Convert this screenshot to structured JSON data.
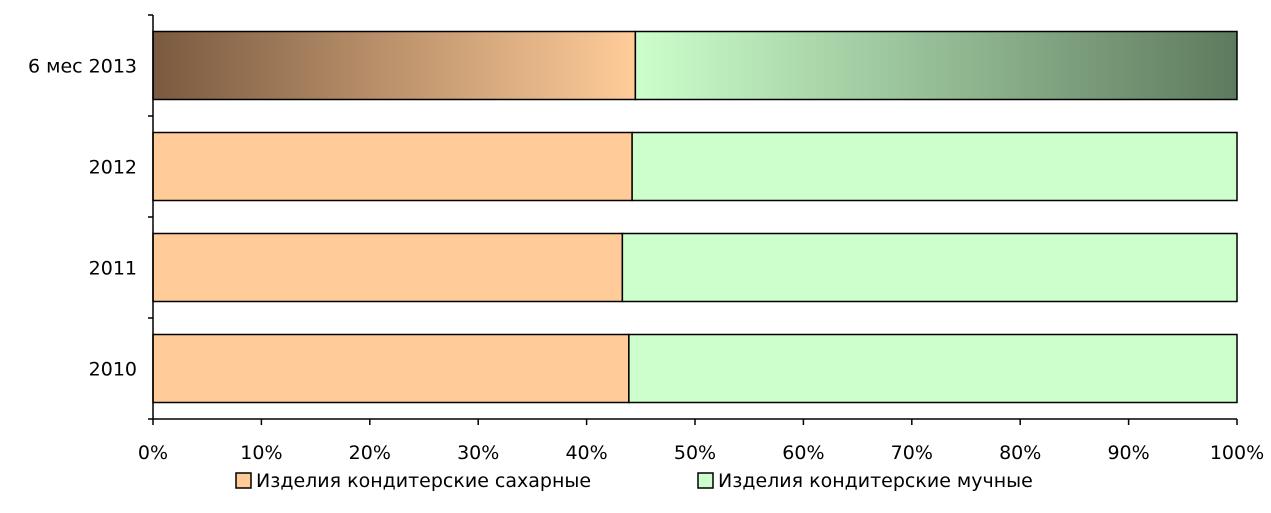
{
  "chart_data": {
    "type": "bar",
    "orientation": "horizontal",
    "stacked": "percent",
    "title": "",
    "xlabel": "",
    "ylabel": "",
    "xlim": [
      0,
      100
    ],
    "grid": false,
    "legend_position": "bottom",
    "categories": [
      "6 мес 2013",
      "2012",
      "2011",
      "2010"
    ],
    "series": [
      {
        "name": "Изделия кондитерские сахарные",
        "color": "#FFCC99",
        "values": [
          44.5,
          44.2,
          43.3,
          43.9
        ]
      },
      {
        "name": "Изделия кондитерские мучные",
        "color": "#CCFFCC",
        "values": [
          55.5,
          55.8,
          56.7,
          56.1
        ]
      }
    ],
    "x_ticks": [
      "0%",
      "10%",
      "20%",
      "30%",
      "40%",
      "50%",
      "60%",
      "70%",
      "80%",
      "90%",
      "100%"
    ],
    "gradient_category": "6 мес 2013",
    "gradient_colors": {
      "series_0_dark": "#7A5A40",
      "series_1_dark": "#5E7A5E"
    }
  }
}
